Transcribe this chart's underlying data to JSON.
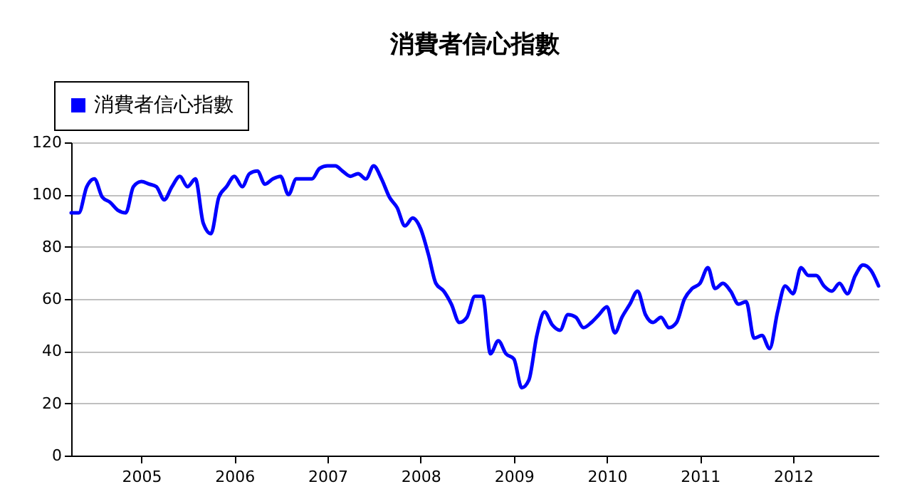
{
  "chart_data": {
    "type": "line",
    "title": "消費者信心指數",
    "x": [
      "2004-04",
      "2004-05",
      "2004-06",
      "2004-07",
      "2004-08",
      "2004-09",
      "2004-10",
      "2004-11",
      "2004-12",
      "2005-01",
      "2005-02",
      "2005-03",
      "2005-04",
      "2005-05",
      "2005-06",
      "2005-07",
      "2005-08",
      "2005-09",
      "2005-10",
      "2005-11",
      "2005-12",
      "2006-01",
      "2006-02",
      "2006-03",
      "2006-04",
      "2006-05",
      "2006-06",
      "2006-07",
      "2006-08",
      "2006-09",
      "2006-10",
      "2006-11",
      "2006-12",
      "2007-01",
      "2007-02",
      "2007-03",
      "2007-04",
      "2007-05",
      "2007-06",
      "2007-07",
      "2007-08",
      "2007-09",
      "2007-10",
      "2007-11",
      "2007-12",
      "2008-01",
      "2008-02",
      "2008-03",
      "2008-04",
      "2008-05",
      "2008-06",
      "2008-07",
      "2008-08",
      "2008-09",
      "2008-10",
      "2008-11",
      "2008-12",
      "2009-01",
      "2009-02",
      "2009-03",
      "2009-04",
      "2009-05",
      "2009-06",
      "2009-07",
      "2009-08",
      "2009-09",
      "2009-10",
      "2009-11",
      "2009-12",
      "2010-01",
      "2010-02",
      "2010-03",
      "2010-04",
      "2010-05",
      "2010-06",
      "2010-07",
      "2010-08",
      "2010-09",
      "2010-10",
      "2010-11",
      "2010-12",
      "2011-01",
      "2011-02",
      "2011-03",
      "2011-04",
      "2011-05",
      "2011-06",
      "2011-07",
      "2011-08",
      "2011-09",
      "2011-10",
      "2011-11",
      "2011-12",
      "2012-01",
      "2012-02",
      "2012-03",
      "2012-04",
      "2012-05",
      "2012-06",
      "2012-07",
      "2012-08",
      "2012-09",
      "2012-10",
      "2012-11",
      "2012-12"
    ],
    "series": [
      {
        "name": "消費者信心指數",
        "color": "#0000ff",
        "values": [
          93,
          93,
          103,
          106,
          99,
          97,
          94,
          93,
          103,
          105,
          104,
          103,
          98,
          103,
          107,
          103,
          106,
          89,
          85,
          99,
          103,
          107,
          103,
          108,
          109,
          104,
          106,
          107,
          100,
          106,
          106,
          106,
          110,
          111,
          111,
          109,
          107,
          108,
          106,
          111,
          106,
          99,
          95,
          88,
          91,
          87,
          77,
          66,
          63,
          58,
          51,
          53,
          61,
          61,
          39,
          44,
          39,
          37,
          26,
          29,
          46,
          55,
          50,
          48,
          54,
          53,
          49,
          51,
          54,
          57,
          47,
          53,
          58,
          63,
          54,
          51,
          53,
          49,
          51,
          60,
          64,
          66,
          72,
          64,
          66,
          63,
          58,
          59,
          45,
          46,
          41,
          55,
          65,
          62,
          72,
          69,
          69,
          65,
          63,
          66,
          62,
          69,
          73,
          71,
          65
        ]
      }
    ],
    "ylim": [
      0,
      120
    ],
    "yticks": [
      0,
      20,
      40,
      60,
      80,
      100,
      120
    ],
    "xlim": [
      "2004-04",
      "2012-12"
    ],
    "xticks": [
      {
        "value": "2005-01",
        "label": "2005"
      },
      {
        "value": "2006-01",
        "label": "2006"
      },
      {
        "value": "2007-01",
        "label": "2007"
      },
      {
        "value": "2008-01",
        "label": "2008"
      },
      {
        "value": "2009-01",
        "label": "2009"
      },
      {
        "value": "2010-01",
        "label": "2010"
      },
      {
        "value": "2011-01",
        "label": "2011"
      },
      {
        "value": "2012-01",
        "label": "2012"
      }
    ],
    "grid": "y",
    "legend": "top left",
    "marker": "none",
    "line_style": "solid"
  }
}
